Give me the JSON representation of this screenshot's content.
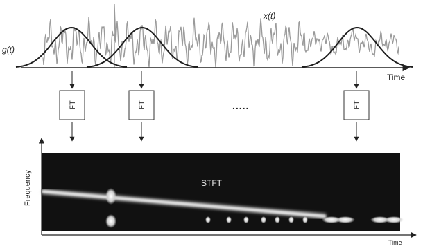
{
  "signal": {
    "x_label": "x(t)",
    "window_label": "g(t)",
    "time_axis_label": "Time"
  },
  "transform": {
    "block_label": "FT",
    "ellipsis": "....."
  },
  "spectrogram": {
    "title": "STFT",
    "y_axis_label": "Frequency",
    "x_axis_label": "Time"
  },
  "colors": {
    "ink": "#222222",
    "signal": "#9a9a9a",
    "spectrogram_bg": "#111111",
    "band": "#d8d8d8"
  }
}
